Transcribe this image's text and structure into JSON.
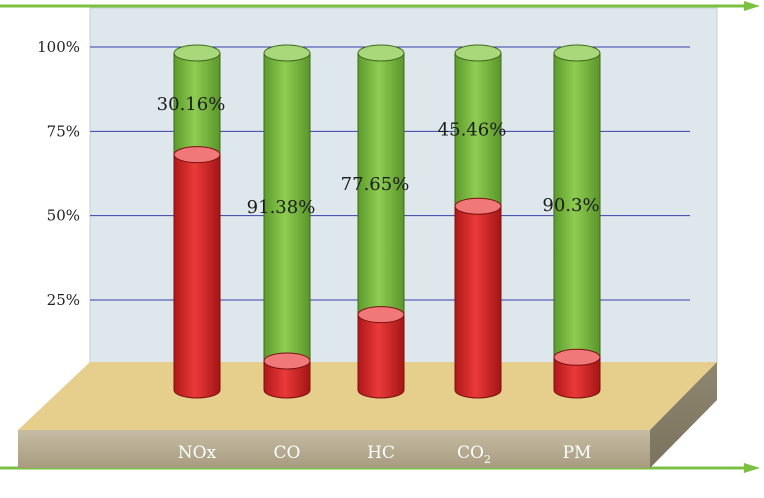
{
  "chart_data": {
    "type": "bar",
    "stacked": true,
    "style": "3d-cylinder",
    "title": "",
    "xlabel": "",
    "ylabel": "",
    "categories": [
      "NOx",
      "CO",
      "HC",
      "CO2",
      "PM"
    ],
    "category_labels": [
      {
        "main": "NOx",
        "sub": ""
      },
      {
        "main": "CO",
        "sub": ""
      },
      {
        "main": "HC",
        "sub": ""
      },
      {
        "main": "CO",
        "sub": "2"
      },
      {
        "main": "PM",
        "sub": ""
      }
    ],
    "series": [
      {
        "color": "#e03030",
        "values": [
          69.84,
          8.62,
          22.35,
          54.54,
          9.7
        ]
      },
      {
        "color": "#7cc040",
        "values": [
          30.16,
          91.38,
          77.65,
          45.46,
          90.3
        ]
      }
    ],
    "data_labels": [
      "30.16%",
      "91.38%",
      "77.65%",
      "45.46%",
      "90.3%"
    ],
    "y_ticks": [
      {
        "value": 25,
        "label": "25%"
      },
      {
        "value": 50,
        "label": "50%"
      },
      {
        "value": 75,
        "label": "75%"
      },
      {
        "value": 100,
        "label": "100%"
      }
    ],
    "ylim": [
      0,
      100
    ],
    "grid": true,
    "colors": {
      "back_wall": "#dde7ec",
      "floor_top": "#e6cf8c",
      "floor_front": "#b9ae93",
      "gridline": "#3a3faa",
      "frame_arrow": "#7cc040"
    }
  }
}
